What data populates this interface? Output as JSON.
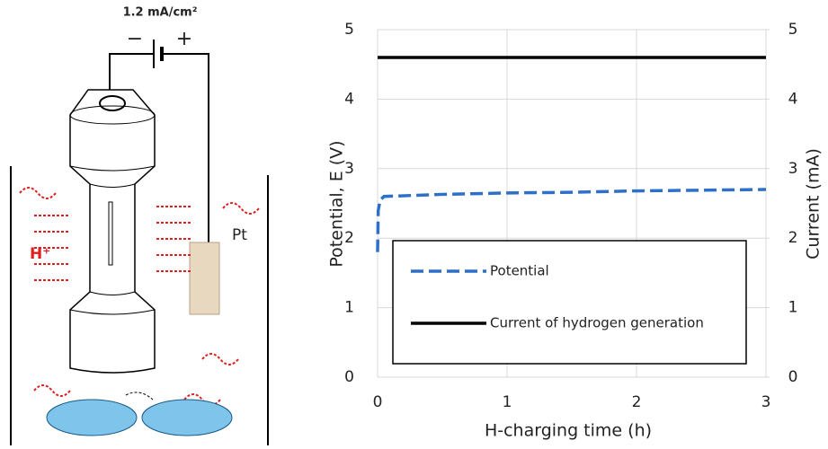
{
  "diagram": {
    "current_density": "1.2 mA/cm²",
    "minus": "−",
    "plus": "+",
    "electrode": "Pt",
    "ion": "H⁺"
  },
  "chart_data": {
    "type": "line",
    "x_label": "H-charging time (h)",
    "y_label": "Potential, E (V)",
    "y2_label": "Current (mA)",
    "xlim": [
      0,
      3
    ],
    "xticks": [
      0,
      1,
      2,
      3
    ],
    "ylim": [
      0,
      5
    ],
    "yticks": [
      0,
      1,
      2,
      3,
      4,
      5
    ],
    "y2lim": [
      0,
      5
    ],
    "y2ticks": [
      0,
      1,
      2,
      3,
      4,
      5
    ],
    "grid": true,
    "legend": "lower left",
    "series": [
      {
        "name": "Potential",
        "color": "#2e6fc9",
        "dash": true,
        "x": [
          0,
          0.005,
          0.02,
          0.05,
          0.5,
          1,
          1.5,
          2,
          2.5,
          3
        ],
        "values": [
          1.8,
          2.4,
          2.55,
          2.6,
          2.63,
          2.65,
          2.66,
          2.68,
          2.69,
          2.7
        ]
      },
      {
        "name": "Current of hydrogen generation",
        "color": "#000000",
        "axis": "y2",
        "x": [
          0,
          3
        ],
        "values": [
          4.6,
          4.6
        ]
      }
    ]
  }
}
